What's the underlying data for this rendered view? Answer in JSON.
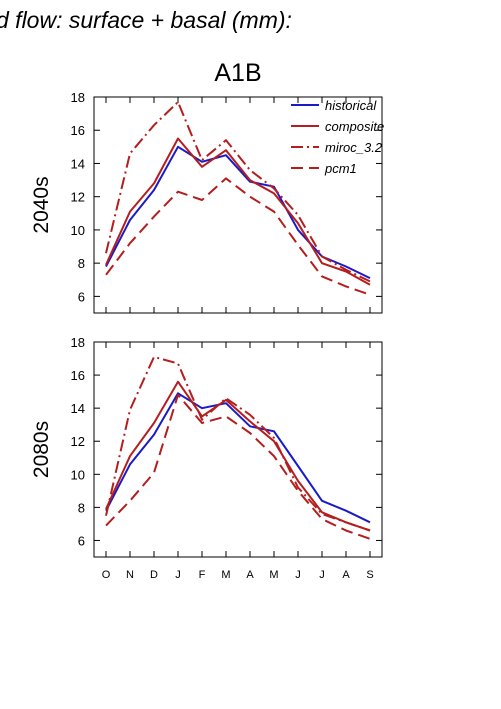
{
  "header": {
    "title": "d flow: surface + basal (mm):",
    "scenario": "A1B"
  },
  "colors": {
    "historical": "#1a1ac8",
    "composite": "#b41e1e",
    "miroc_3.2": "#b41e1e",
    "pcm1": "#b41e1e"
  },
  "chart_data": [
    {
      "type": "line",
      "title": "A1B",
      "ylabel": "2040s",
      "xlabel": "",
      "categories": [
        "O",
        "N",
        "D",
        "J",
        "F",
        "M",
        "A",
        "M",
        "J",
        "J",
        "A",
        "S"
      ],
      "ylim": [
        5,
        18
      ],
      "yticks": [
        6,
        8,
        10,
        12,
        14,
        16,
        18
      ],
      "show_xtick_labels": false,
      "legend": "top-right",
      "grid": false,
      "series": [
        {
          "name": "historical",
          "style": "solid",
          "values": [
            7.8,
            10.6,
            12.4,
            15.0,
            14.1,
            14.5,
            12.9,
            12.6,
            10.0,
            8.4,
            7.8,
            7.1
          ]
        },
        {
          "name": "composite",
          "style": "solid",
          "values": [
            7.9,
            11.1,
            12.8,
            15.5,
            13.8,
            14.8,
            13.0,
            12.2,
            10.4,
            8.0,
            7.5,
            6.7
          ]
        },
        {
          "name": "miroc_3.2",
          "style": "dashdot",
          "values": [
            8.6,
            14.6,
            16.3,
            17.7,
            14.2,
            15.4,
            13.6,
            12.5,
            10.9,
            8.4,
            7.6,
            6.9
          ]
        },
        {
          "name": "pcm1",
          "style": "dashed",
          "values": [
            7.3,
            9.2,
            10.8,
            12.3,
            11.8,
            13.1,
            12.0,
            11.1,
            9.1,
            7.2,
            6.6,
            6.1
          ]
        }
      ]
    },
    {
      "type": "line",
      "title": "",
      "ylabel": "2080s",
      "xlabel": "",
      "categories": [
        "O",
        "N",
        "D",
        "J",
        "F",
        "M",
        "A",
        "M",
        "J",
        "J",
        "A",
        "S"
      ],
      "ylim": [
        5,
        18
      ],
      "yticks": [
        6,
        8,
        10,
        12,
        14,
        16,
        18
      ],
      "show_xtick_labels": true,
      "legend": "none",
      "grid": false,
      "series": [
        {
          "name": "historical",
          "style": "solid",
          "values": [
            7.8,
            10.6,
            12.4,
            14.9,
            14.0,
            14.3,
            12.9,
            12.6,
            10.5,
            8.4,
            7.8,
            7.1
          ]
        },
        {
          "name": "composite",
          "style": "solid",
          "values": [
            7.9,
            11.1,
            13.1,
            15.6,
            13.5,
            14.5,
            13.2,
            12.0,
            9.6,
            7.7,
            7.1,
            6.6
          ]
        },
        {
          "name": "miroc_3.2",
          "style": "dashdot",
          "values": [
            7.5,
            13.9,
            17.1,
            16.7,
            13.3,
            14.6,
            13.6,
            12.2,
            9.2,
            7.6,
            7.1,
            6.6
          ]
        },
        {
          "name": "pcm1",
          "style": "dashed",
          "values": [
            6.9,
            8.4,
            10.1,
            14.8,
            13.1,
            13.5,
            12.5,
            11.1,
            9.0,
            7.3,
            6.6,
            6.1
          ]
        }
      ]
    }
  ]
}
